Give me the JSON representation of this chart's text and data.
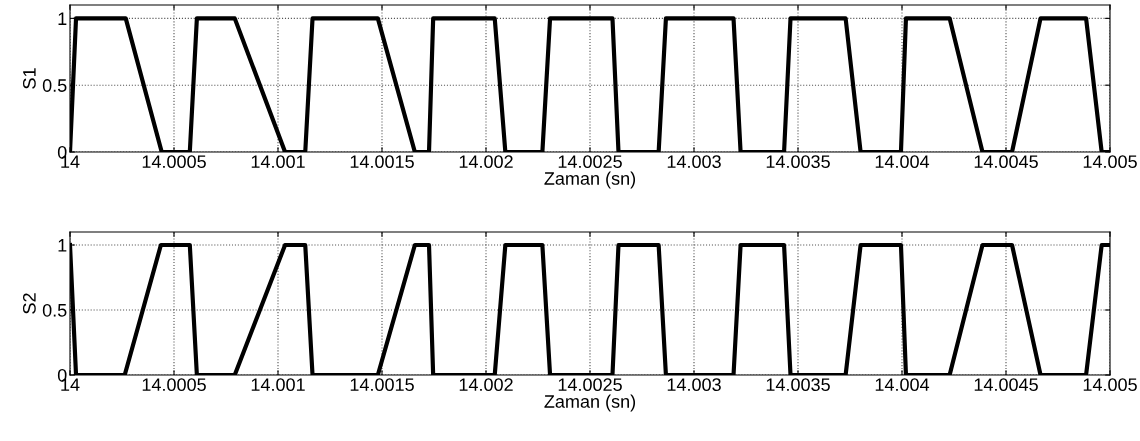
{
  "chart_data": [
    {
      "type": "line",
      "xlabel": "Zaman (sn)",
      "ylabel": "S1",
      "xlim": [
        14,
        14.005
      ],
      "ylim": [
        0,
        1.1
      ],
      "xticks": [
        14,
        14.0005,
        14.001,
        14.0015,
        14.002,
        14.0025,
        14.003,
        14.0035,
        14.004,
        14.0045,
        14.005
      ],
      "yticks": [
        0,
        0.5,
        1
      ],
      "grid": true,
      "marker": "none",
      "line_style": "solid",
      "x": [
        14,
        14.000029,
        14.000268,
        14.000441,
        14.000576,
        14.00061,
        14.000792,
        14.001034,
        14.001131,
        14.001166,
        14.00148,
        14.001658,
        14.001726,
        14.001746,
        14.002042,
        14.002093,
        14.002271,
        14.002308,
        14.002608,
        14.002637,
        14.00283,
        14.002865,
        14.00319,
        14.003224,
        14.003433,
        14.003464,
        14.003729,
        14.003801,
        14.003995,
        14.004019,
        14.004229,
        14.004387,
        14.004529,
        14.004666,
        14.004885,
        14.00496,
        14.005
      ],
      "series": [
        {
          "color": "#000000",
          "values": [
            0,
            1,
            1,
            0,
            0,
            1,
            1,
            0,
            0,
            1,
            1,
            0,
            0,
            1,
            1,
            0,
            0,
            1,
            1,
            0,
            0,
            1,
            1,
            0,
            0,
            1,
            1,
            0,
            0,
            1,
            1,
            0,
            0,
            1,
            1,
            0,
            0
          ]
        }
      ]
    },
    {
      "type": "line",
      "xlabel": "Zaman (sn)",
      "ylabel": "S2",
      "xlim": [
        14,
        14.005
      ],
      "ylim": [
        0,
        1.1
      ],
      "xticks": [
        14,
        14.0005,
        14.001,
        14.0015,
        14.002,
        14.0025,
        14.003,
        14.0035,
        14.004,
        14.0045,
        14.005
      ],
      "yticks": [
        0,
        0.5,
        1
      ],
      "grid": true,
      "marker": "none",
      "line_style": "solid",
      "x": [
        14,
        14.000029,
        14.000263,
        14.000437,
        14.000576,
        14.00061,
        14.000792,
        14.001034,
        14.001131,
        14.001166,
        14.00148,
        14.001658,
        14.001726,
        14.001746,
        14.002042,
        14.002093,
        14.002271,
        14.002308,
        14.002608,
        14.002637,
        14.00283,
        14.002865,
        14.00319,
        14.003224,
        14.003433,
        14.003464,
        14.003729,
        14.003801,
        14.003995,
        14.004019,
        14.004229,
        14.004387,
        14.004529,
        14.004666,
        14.004885,
        14.00496,
        14.005
      ],
      "series": [
        {
          "color": "#000000",
          "values": [
            1,
            0,
            0,
            1,
            1,
            0,
            0,
            1,
            1,
            0,
            0,
            1,
            1,
            0,
            0,
            1,
            1,
            0,
            0,
            1,
            1,
            0,
            0,
            1,
            1,
            0,
            0,
            1,
            1,
            0,
            0,
            1,
            1,
            0,
            0,
            1,
            1
          ]
        }
      ]
    }
  ]
}
